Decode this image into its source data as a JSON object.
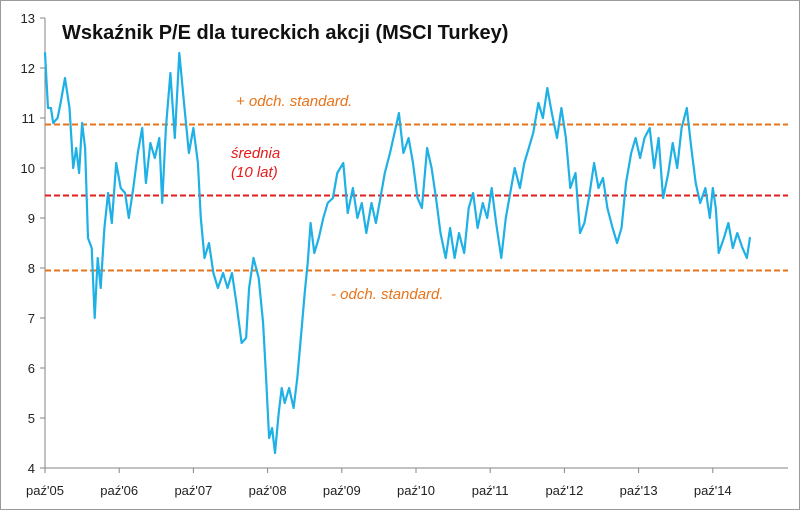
{
  "chart_data": {
    "type": "line",
    "title": "Wskaźnik P/E dla tureckich akcji (MSCI Turkey)",
    "xlabel": "",
    "ylabel": "",
    "ylim": [
      4,
      13
    ],
    "yticks": [
      4,
      5,
      6,
      7,
      8,
      9,
      10,
      11,
      12,
      13
    ],
    "xticks": [
      "paź'05",
      "paź'06",
      "paź'07",
      "paź'08",
      "paź'09",
      "paź'10",
      "paź'11",
      "paź'12",
      "paź'13",
      "paź'14"
    ],
    "grid": false,
    "series": [
      {
        "name": "",
        "color": "#1fb0e6",
        "points": [
          [
            0.0,
            12.3
          ],
          [
            0.04,
            11.2
          ],
          [
            0.08,
            11.2
          ],
          [
            0.11,
            10.9
          ],
          [
            0.17,
            11.0
          ],
          [
            0.21,
            11.3
          ],
          [
            0.27,
            11.8
          ],
          [
            0.33,
            11.2
          ],
          [
            0.38,
            10.0
          ],
          [
            0.42,
            10.4
          ],
          [
            0.46,
            9.9
          ],
          [
            0.5,
            10.9
          ],
          [
            0.54,
            10.4
          ],
          [
            0.58,
            8.6
          ],
          [
            0.63,
            8.4
          ],
          [
            0.67,
            7.0
          ],
          [
            0.71,
            8.2
          ],
          [
            0.75,
            7.6
          ],
          [
            0.8,
            8.8
          ],
          [
            0.85,
            9.5
          ],
          [
            0.9,
            8.9
          ],
          [
            0.96,
            10.1
          ],
          [
            1.02,
            9.6
          ],
          [
            1.08,
            9.5
          ],
          [
            1.13,
            9.0
          ],
          [
            1.19,
            9.6
          ],
          [
            1.25,
            10.3
          ],
          [
            1.31,
            10.8
          ],
          [
            1.36,
            9.7
          ],
          [
            1.42,
            10.5
          ],
          [
            1.48,
            10.2
          ],
          [
            1.54,
            10.6
          ],
          [
            1.58,
            9.3
          ],
          [
            1.63,
            10.8
          ],
          [
            1.69,
            11.9
          ],
          [
            1.75,
            10.6
          ],
          [
            1.81,
            12.3
          ],
          [
            1.88,
            11.2
          ],
          [
            1.94,
            10.3
          ],
          [
            2.0,
            10.8
          ],
          [
            2.06,
            10.1
          ],
          [
            2.1,
            9.0
          ],
          [
            2.15,
            8.2
          ],
          [
            2.21,
            8.5
          ],
          [
            2.27,
            7.9
          ],
          [
            2.33,
            7.6
          ],
          [
            2.4,
            7.9
          ],
          [
            2.46,
            7.6
          ],
          [
            2.52,
            7.9
          ],
          [
            2.58,
            7.3
          ],
          [
            2.65,
            6.5
          ],
          [
            2.71,
            6.6
          ],
          [
            2.75,
            7.6
          ],
          [
            2.81,
            8.2
          ],
          [
            2.88,
            7.8
          ],
          [
            2.94,
            6.9
          ],
          [
            2.98,
            5.8
          ],
          [
            3.02,
            4.6
          ],
          [
            3.06,
            4.8
          ],
          [
            3.1,
            4.3
          ],
          [
            3.15,
            5.1
          ],
          [
            3.19,
            5.6
          ],
          [
            3.23,
            5.3
          ],
          [
            3.29,
            5.6
          ],
          [
            3.35,
            5.2
          ],
          [
            3.4,
            5.8
          ],
          [
            3.46,
            6.8
          ],
          [
            3.5,
            7.5
          ],
          [
            3.54,
            8.1
          ],
          [
            3.58,
            8.9
          ],
          [
            3.63,
            8.3
          ],
          [
            3.69,
            8.6
          ],
          [
            3.75,
            9.0
          ],
          [
            3.81,
            9.3
          ],
          [
            3.88,
            9.4
          ],
          [
            3.94,
            9.9
          ],
          [
            4.02,
            10.1
          ],
          [
            4.08,
            9.1
          ],
          [
            4.15,
            9.6
          ],
          [
            4.21,
            9.0
          ],
          [
            4.27,
            9.3
          ],
          [
            4.33,
            8.7
          ],
          [
            4.4,
            9.3
          ],
          [
            4.46,
            8.9
          ],
          [
            4.52,
            9.4
          ],
          [
            4.58,
            9.9
          ],
          [
            4.65,
            10.3
          ],
          [
            4.71,
            10.7
          ],
          [
            4.77,
            11.1
          ],
          [
            4.83,
            10.3
          ],
          [
            4.9,
            10.6
          ],
          [
            4.96,
            10.1
          ],
          [
            5.02,
            9.4
          ],
          [
            5.08,
            9.2
          ],
          [
            5.15,
            10.4
          ],
          [
            5.21,
            10.0
          ],
          [
            5.27,
            9.4
          ],
          [
            5.33,
            8.7
          ],
          [
            5.4,
            8.2
          ],
          [
            5.46,
            8.8
          ],
          [
            5.52,
            8.2
          ],
          [
            5.58,
            8.7
          ],
          [
            5.65,
            8.3
          ],
          [
            5.71,
            9.2
          ],
          [
            5.77,
            9.5
          ],
          [
            5.83,
            8.8
          ],
          [
            5.9,
            9.3
          ],
          [
            5.96,
            9.0
          ],
          [
            6.02,
            9.6
          ],
          [
            6.08,
            8.9
          ],
          [
            6.15,
            8.2
          ],
          [
            6.21,
            9.0
          ],
          [
            6.27,
            9.5
          ],
          [
            6.33,
            10.0
          ],
          [
            6.4,
            9.6
          ],
          [
            6.46,
            10.1
          ],
          [
            6.52,
            10.4
          ],
          [
            6.58,
            10.7
          ],
          [
            6.65,
            11.3
          ],
          [
            6.71,
            11.0
          ],
          [
            6.77,
            11.6
          ],
          [
            6.83,
            11.1
          ],
          [
            6.9,
            10.6
          ],
          [
            6.96,
            11.2
          ],
          [
            7.02,
            10.6
          ],
          [
            7.08,
            9.6
          ],
          [
            7.15,
            9.9
          ],
          [
            7.21,
            8.7
          ],
          [
            7.27,
            8.9
          ],
          [
            7.33,
            9.4
          ],
          [
            7.4,
            10.1
          ],
          [
            7.46,
            9.6
          ],
          [
            7.52,
            9.8
          ],
          [
            7.58,
            9.2
          ],
          [
            7.65,
            8.8
          ],
          [
            7.71,
            8.5
          ],
          [
            7.77,
            8.8
          ],
          [
            7.83,
            9.7
          ],
          [
            7.9,
            10.3
          ],
          [
            7.96,
            10.6
          ],
          [
            8.02,
            10.2
          ],
          [
            8.08,
            10.6
          ],
          [
            8.15,
            10.8
          ],
          [
            8.21,
            10.0
          ],
          [
            8.27,
            10.6
          ],
          [
            8.33,
            9.4
          ],
          [
            8.4,
            9.9
          ],
          [
            8.46,
            10.5
          ],
          [
            8.52,
            10.0
          ],
          [
            8.58,
            10.8
          ],
          [
            8.65,
            11.2
          ],
          [
            8.71,
            10.4
          ],
          [
            8.77,
            9.7
          ],
          [
            8.83,
            9.3
          ],
          [
            8.9,
            9.6
          ],
          [
            8.96,
            9.0
          ],
          [
            9.0,
            9.6
          ],
          [
            9.04,
            9.2
          ],
          [
            9.08,
            8.3
          ],
          [
            9.15,
            8.6
          ],
          [
            9.21,
            8.9
          ],
          [
            9.27,
            8.4
          ],
          [
            9.33,
            8.7
          ],
          [
            9.4,
            8.4
          ],
          [
            9.46,
            8.2
          ],
          [
            9.5,
            8.6
          ]
        ]
      }
    ],
    "reference_lines": [
      {
        "value": 10.87,
        "color": "#e8731a",
        "label": "+ odch. standard."
      },
      {
        "value": 9.45,
        "color": "#e31c1c",
        "label": "średnia (10 lat)"
      },
      {
        "value": 7.95,
        "color": "#e8731a",
        "label": "- odch. standard."
      }
    ]
  },
  "annotations": {
    "plus_std": "+ odch. standard.",
    "mean_line1": "średnia",
    "mean_line2": "(10 lat)",
    "minus_std": "- odch. standard."
  }
}
